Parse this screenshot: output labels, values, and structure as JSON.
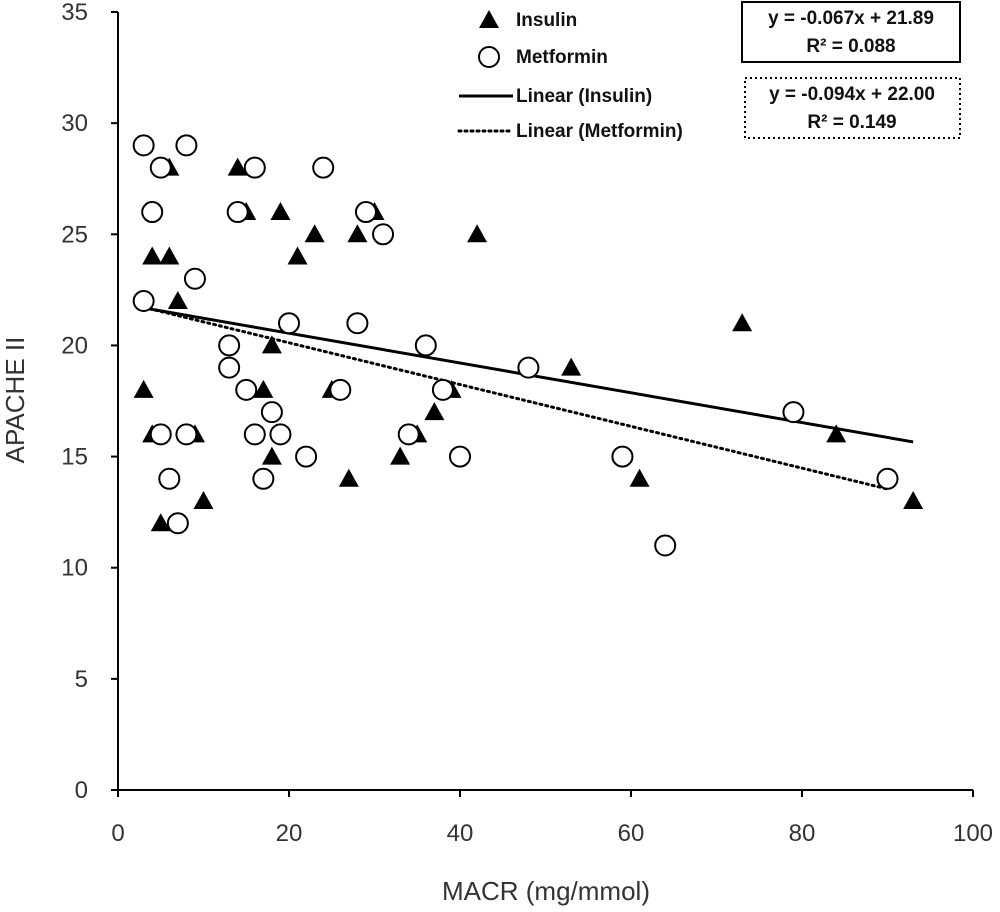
{
  "chart_data": {
    "type": "scatter",
    "title": "",
    "xlabel": "MACR (mg/mmol)",
    "ylabel": "APACHE II",
    "xlim": [
      0,
      100
    ],
    "ylim": [
      0,
      35
    ],
    "x_ticks": [
      0,
      20,
      40,
      60,
      80,
      100
    ],
    "y_ticks": [
      0,
      5,
      10,
      15,
      20,
      25,
      30,
      35
    ],
    "x_tick_labels": [
      "0",
      "20",
      "40",
      "60",
      "80",
      "100"
    ],
    "y_tick_labels": [
      "0",
      "5",
      "10",
      "15",
      "20",
      "25",
      "30",
      "35"
    ],
    "grid": false,
    "legend_position": "top-right",
    "series": [
      {
        "name": "Insulin",
        "marker": "filled-triangle",
        "color": "#000000",
        "points": [
          {
            "x": 3,
            "y": 18
          },
          {
            "x": 4,
            "y": 24
          },
          {
            "x": 4,
            "y": 16
          },
          {
            "x": 5,
            "y": 12
          },
          {
            "x": 6,
            "y": 28
          },
          {
            "x": 6,
            "y": 24
          },
          {
            "x": 7,
            "y": 22
          },
          {
            "x": 9,
            "y": 16
          },
          {
            "x": 10,
            "y": 13
          },
          {
            "x": 14,
            "y": 28
          },
          {
            "x": 15,
            "y": 26
          },
          {
            "x": 17,
            "y": 18
          },
          {
            "x": 18,
            "y": 20
          },
          {
            "x": 18,
            "y": 15
          },
          {
            "x": 19,
            "y": 26
          },
          {
            "x": 21,
            "y": 24
          },
          {
            "x": 23,
            "y": 25
          },
          {
            "x": 25,
            "y": 18
          },
          {
            "x": 27,
            "y": 14
          },
          {
            "x": 28,
            "y": 25
          },
          {
            "x": 30,
            "y": 26
          },
          {
            "x": 33,
            "y": 15
          },
          {
            "x": 35,
            "y": 16
          },
          {
            "x": 37,
            "y": 17
          },
          {
            "x": 39,
            "y": 18
          },
          {
            "x": 42,
            "y": 25
          },
          {
            "x": 53,
            "y": 19
          },
          {
            "x": 61,
            "y": 14
          },
          {
            "x": 73,
            "y": 21
          },
          {
            "x": 84,
            "y": 16
          },
          {
            "x": 93,
            "y": 13
          }
        ]
      },
      {
        "name": "Metformin",
        "marker": "open-circle",
        "color": "#000000",
        "points": [
          {
            "x": 3,
            "y": 29
          },
          {
            "x": 3,
            "y": 22
          },
          {
            "x": 4,
            "y": 26
          },
          {
            "x": 5,
            "y": 28
          },
          {
            "x": 5,
            "y": 16
          },
          {
            "x": 6,
            "y": 14
          },
          {
            "x": 7,
            "y": 12
          },
          {
            "x": 8,
            "y": 29
          },
          {
            "x": 8,
            "y": 16
          },
          {
            "x": 9,
            "y": 23
          },
          {
            "x": 13,
            "y": 20
          },
          {
            "x": 13,
            "y": 19
          },
          {
            "x": 14,
            "y": 26
          },
          {
            "x": 15,
            "y": 18
          },
          {
            "x": 16,
            "y": 28
          },
          {
            "x": 16,
            "y": 16
          },
          {
            "x": 17,
            "y": 14
          },
          {
            "x": 18,
            "y": 17
          },
          {
            "x": 19,
            "y": 16
          },
          {
            "x": 20,
            "y": 21
          },
          {
            "x": 22,
            "y": 15
          },
          {
            "x": 24,
            "y": 28
          },
          {
            "x": 26,
            "y": 18
          },
          {
            "x": 28,
            "y": 21
          },
          {
            "x": 29,
            "y": 26
          },
          {
            "x": 31,
            "y": 25
          },
          {
            "x": 34,
            "y": 16
          },
          {
            "x": 36,
            "y": 20
          },
          {
            "x": 38,
            "y": 18
          },
          {
            "x": 40,
            "y": 15
          },
          {
            "x": 48,
            "y": 19
          },
          {
            "x": 59,
            "y": 15
          },
          {
            "x": 64,
            "y": 11
          },
          {
            "x": 79,
            "y": 17
          },
          {
            "x": 90,
            "y": 14
          }
        ]
      }
    ],
    "trendlines": [
      {
        "name": "Linear (Insulin)",
        "style": "solid",
        "slope": -0.067,
        "intercept": 21.89,
        "x_range": [
          3,
          93
        ],
        "equation": "y = -0.067x + 21.89",
        "r2": "R² = 0.088"
      },
      {
        "name": "Linear (Metformin)",
        "style": "dotted",
        "slope": -0.094,
        "intercept": 22.0,
        "x_range": [
          3,
          90
        ],
        "equation": "y = -0.094x + 22.00",
        "r2": "R² = 0.149"
      }
    ]
  }
}
